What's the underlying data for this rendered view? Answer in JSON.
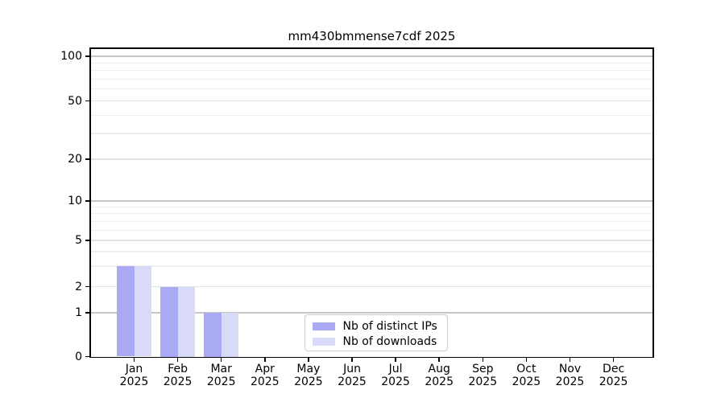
{
  "title": "mm430bmmense7cdf 2025",
  "chart_data": {
    "type": "bar",
    "title": "mm430bmmense7cdf 2025",
    "categories": [
      "Jan 2025",
      "Feb 2025",
      "Mar 2025",
      "Apr 2025",
      "May 2025",
      "Jun 2025",
      "Jul 2025",
      "Aug 2025",
      "Sep 2025",
      "Oct 2025",
      "Nov 2025",
      "Dec 2025"
    ],
    "x_tick_line1": [
      "Jan",
      "Feb",
      "Mar",
      "Apr",
      "May",
      "Jun",
      "Jul",
      "Aug",
      "Sep",
      "Oct",
      "Nov",
      "Dec"
    ],
    "x_tick_line2": "2025",
    "series": [
      {
        "name": "Nb of distinct IPs",
        "color": "#a9a9f4",
        "values": [
          3,
          2,
          1,
          0,
          0,
          0,
          0,
          0,
          0,
          0,
          0,
          0
        ]
      },
      {
        "name": "Nb of downloads",
        "color": "#d9d9f8",
        "values": [
          3,
          2,
          1,
          0,
          0,
          0,
          0,
          0,
          0,
          0,
          0,
          0
        ]
      }
    ],
    "yscale": "log-like with 0 baseline",
    "y_ticks": [
      0,
      1,
      2,
      5,
      10,
      20,
      50,
      100
    ],
    "y_tick_labels": [
      "0",
      "1",
      "2",
      "5",
      "10",
      "20",
      "50",
      "100"
    ],
    "y_decade_gridlines": [
      1,
      10,
      100
    ],
    "y_minor_gridlines": [
      3,
      4,
      6,
      7,
      8,
      9,
      30,
      40,
      60,
      70,
      80,
      90
    ],
    "ylim": [
      0,
      115
    ],
    "grid": "horizontal",
    "legend_position": "bottom-center",
    "legend_entries": [
      "Nb of distinct IPs",
      "Nb of downloads"
    ]
  },
  "colors": {
    "background": "#ffffff",
    "bar_distinct_ips": "#a9a9f4",
    "bar_downloads": "#d9d9f8",
    "grid_decade": "#c6c6c6",
    "grid_labeled": "#e3e3e3",
    "grid_minor": "#eeeeee",
    "axis": "#000000",
    "text": "#000000",
    "legend_border": "#cccccc"
  }
}
